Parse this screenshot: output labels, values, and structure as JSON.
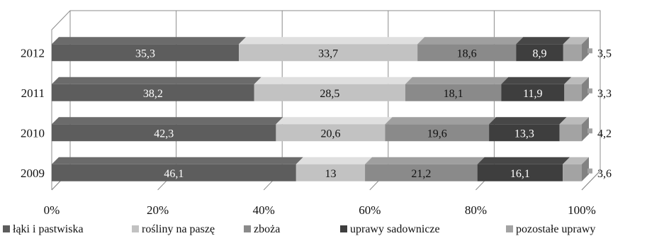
{
  "chart_data": {
    "type": "bar",
    "orientation": "horizontal",
    "stacked": "percent",
    "categories": [
      "2012",
      "2011",
      "2010",
      "2009"
    ],
    "series": [
      {
        "name": "łąki i pastwiska",
        "values": [
          35.3,
          38.2,
          42.3,
          46.1
        ]
      },
      {
        "name": "rośliny na paszę",
        "values": [
          33.7,
          28.5,
          20.6,
          13
        ]
      },
      {
        "name": "zboża",
        "values": [
          18.6,
          18.1,
          19.6,
          21.2
        ]
      },
      {
        "name": "uprawy sadownicze",
        "values": [
          8.9,
          11.9,
          13.3,
          16.1
        ]
      },
      {
        "name": "pozostałe uprawy",
        "values": [
          3.5,
          3.3,
          4.2,
          3.6
        ]
      }
    ],
    "x_ticks": [
      "0%",
      "20%",
      "40%",
      "60%",
      "80%",
      "100%"
    ],
    "xlim": [
      0,
      100
    ],
    "grid": true,
    "legend_position": "bottom",
    "title": "",
    "xlabel": "",
    "ylabel": "",
    "colors": [
      "#5d5d5d",
      "#c2c2c2",
      "#8a8a8a",
      "#3e3e3e",
      "#a3a3a3"
    ],
    "label_colors": [
      "#ffffff",
      "#111111",
      "#111111",
      "#ffffff",
      "#111111"
    ]
  }
}
